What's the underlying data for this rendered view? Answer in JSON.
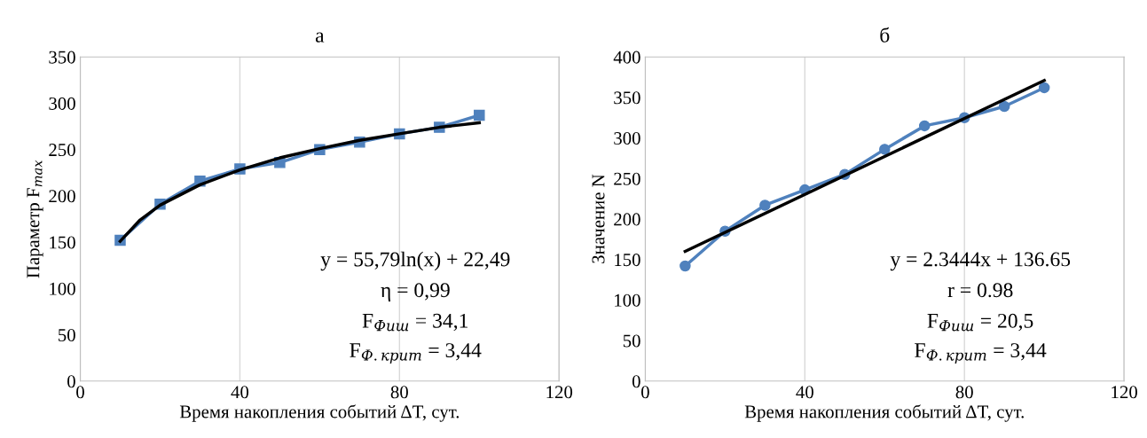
{
  "chart_data": [
    {
      "type": "line",
      "title": "а",
      "xlabel": "Время накопления событий ΔT, сут.",
      "ylabel": "Параметр F$_{max}$",
      "xlim": [
        0,
        120
      ],
      "xticks": [
        0,
        40,
        80,
        120
      ],
      "ylim": [
        0,
        350
      ],
      "yticks": [
        0,
        50,
        100,
        150,
        200,
        250,
        300,
        350
      ],
      "grid": "x",
      "legend": false,
      "series": [
        {
          "color": "#4f81bd",
          "marker": "square",
          "x": [
            10,
            20,
            30,
            40,
            50,
            60,
            70,
            80,
            90,
            100
          ],
          "values": [
            152,
            191,
            216,
            229,
            236,
            250,
            258,
            267,
            274,
            287
          ]
        },
        {
          "color": "#000000",
          "marker": "none",
          "x": [
            10,
            15,
            20,
            30,
            40,
            50,
            60,
            70,
            80,
            90,
            100
          ],
          "values": [
            151,
            174,
            190,
            212,
            228,
            241,
            251,
            260,
            267,
            274,
            279
          ]
        }
      ],
      "annotations": [
        "y = 55,79ln(x) + 22,49",
        "η = 0,99",
        "F$_{Фиш}$ = 34,1",
        "F$_{Ф.крит}$ = 3,44"
      ]
    },
    {
      "type": "line",
      "title": "б",
      "xlabel": "Время накопления событий ΔT, сут.",
      "ylabel": "Значение N",
      "xlim": [
        0,
        120
      ],
      "xticks": [
        0,
        40,
        80,
        120
      ],
      "ylim": [
        0,
        400
      ],
      "yticks": [
        0,
        50,
        100,
        150,
        200,
        250,
        300,
        350,
        400
      ],
      "grid": "x",
      "legend": false,
      "series": [
        {
          "color": "#4f81bd",
          "marker": "circle",
          "x": [
            10,
            20,
            30,
            40,
            50,
            60,
            70,
            80,
            90,
            100
          ],
          "values": [
            142,
            185,
            217,
            236,
            255,
            286,
            315,
            325,
            339,
            362
          ]
        },
        {
          "color": "#000000",
          "marker": "none",
          "x": [
            10,
            100
          ],
          "values": [
            160,
            371
          ]
        }
      ],
      "annotations": [
        "y = 2.3444x + 136.65",
        "r = 0.98",
        "F$_{Фиш}$ = 20,5",
        "F$_{Ф.крит}$ = 3,44"
      ]
    }
  ]
}
